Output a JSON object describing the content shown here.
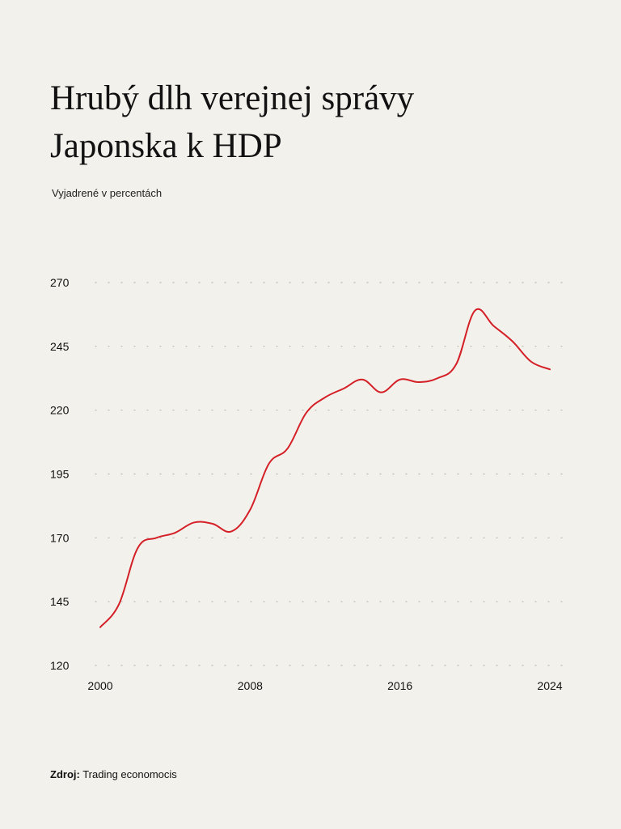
{
  "title_line1": "Hrubý dlh verejnej správy",
  "title_line2": "Japonska k HDP",
  "subtitle": "Vyjadrené v percentách",
  "source_label": "Zdroj:",
  "source_text": "Trading economocis",
  "colors": {
    "background": "#f3f1ec",
    "line": "#d41f26",
    "grid": "#b8b6b0"
  },
  "chart_data": {
    "type": "line",
    "title": "Hrubý dlh verejnej správy Japonska k HDP",
    "subtitle": "Vyjadrené v percentách",
    "xlabel": "",
    "ylabel": "",
    "xlim": [
      2000,
      2024
    ],
    "ylim": [
      120,
      270
    ],
    "yticks": [
      270,
      245,
      220,
      195,
      170,
      145,
      120
    ],
    "xticks": [
      2000,
      2008,
      2016,
      2024
    ],
    "grid": "horizontal-dotted",
    "legend": "none",
    "series": [
      {
        "x": [
          2000,
          2001,
          2002,
          2003,
          2004,
          2005,
          2006,
          2007,
          2008,
          2009,
          2010,
          2011,
          2012,
          2013,
          2014,
          2015,
          2016,
          2017,
          2018,
          2019,
          2020,
          2021,
          2022,
          2023,
          2024
        ],
        "values": [
          135,
          144,
          166,
          170,
          172,
          176,
          175.5,
          172.5,
          181,
          199,
          205,
          219,
          225,
          228.5,
          232,
          227,
          232,
          231,
          232.5,
          238,
          259,
          253,
          247,
          239,
          236
        ]
      }
    ]
  }
}
